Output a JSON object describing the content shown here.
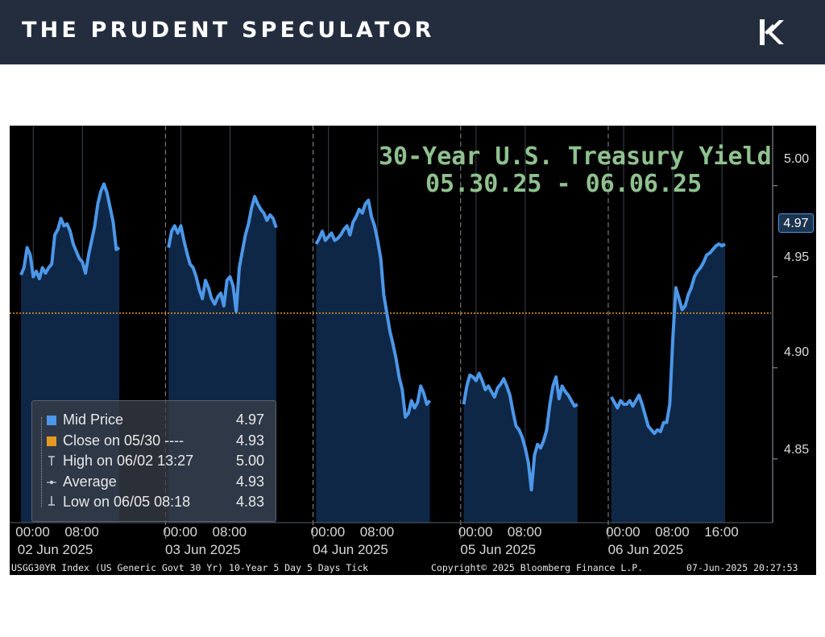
{
  "header": {
    "brand": "THE PRUDENT SPECULATOR",
    "logo_icon": "k-monogram-logo"
  },
  "colors": {
    "header_bg": "#232d3e",
    "chart_bg": "#000000",
    "series_line": "#4c97e8",
    "series_fill": "#0f2746",
    "close_line": "#e39a21",
    "title_green": "#8fc18f"
  },
  "chart_data": {
    "type": "area",
    "title": "30-Year U.S. Treasury Yield",
    "subtitle": "05.30.25 - 06.06.25",
    "ylim": [
      4.815,
      5.033
    ],
    "y_ticks": [
      "5.00",
      "4.95",
      "4.90",
      "4.85"
    ],
    "last_value_label": "4.97",
    "close_reference": 4.93,
    "x_tick_labels": [
      "00:00",
      "08:00",
      "00:00",
      "08:00",
      "00:00",
      "08:00",
      "00:00",
      "08:00",
      "00:00",
      "08:00",
      "16:00"
    ],
    "x_day_labels": [
      "02 Jun 2025",
      "03 Jun 2025",
      "04 Jun 2025",
      "05 Jun 2025",
      "06 Jun 2025"
    ],
    "x_tick_hours": [
      2,
      10,
      26,
      34,
      50,
      58,
      74,
      82,
      98,
      106,
      114
    ],
    "hours_range": [
      0,
      120
    ],
    "segments": [
      {
        "day": "02 Jun 2025",
        "points": [
          [
            0,
            4.951
          ],
          [
            0.5,
            4.955
          ],
          [
            1,
            4.966
          ],
          [
            1.5,
            4.962
          ],
          [
            2,
            4.95
          ],
          [
            2.5,
            4.953
          ],
          [
            3,
            4.949
          ],
          [
            3.5,
            4.955
          ],
          [
            4,
            4.952
          ],
          [
            4.5,
            4.955
          ],
          [
            5,
            4.957
          ],
          [
            5.5,
            4.973
          ],
          [
            6,
            4.976
          ],
          [
            6.5,
            4.982
          ],
          [
            7,
            4.978
          ],
          [
            7.5,
            4.979
          ],
          [
            8,
            4.975
          ],
          [
            8.5,
            4.968
          ],
          [
            9,
            4.964
          ],
          [
            9.5,
            4.96
          ],
          [
            10,
            4.958
          ],
          [
            10.5,
            4.952
          ],
          [
            11,
            4.962
          ],
          [
            11.5,
            4.97
          ],
          [
            12,
            4.978
          ],
          [
            12.5,
            4.99
          ],
          [
            13,
            4.997
          ],
          [
            13.5,
            5.001
          ],
          [
            14,
            4.996
          ],
          [
            14.5,
            4.988
          ],
          [
            15,
            4.98
          ],
          [
            15.5,
            4.965
          ],
          [
            16,
            4.966
          ]
        ]
      },
      {
        "day": "03 Jun 2025",
        "points": [
          [
            24,
            4.966
          ],
          [
            24.5,
            4.975
          ],
          [
            25,
            4.978
          ],
          [
            25.5,
            4.974
          ],
          [
            26,
            4.978
          ],
          [
            26.5,
            4.97
          ],
          [
            27,
            4.963
          ],
          [
            27.5,
            4.957
          ],
          [
            28,
            4.955
          ],
          [
            28.5,
            4.95
          ],
          [
            29,
            4.943
          ],
          [
            29.5,
            4.938
          ],
          [
            30,
            4.948
          ],
          [
            30.5,
            4.944
          ],
          [
            31,
            4.938
          ],
          [
            31.5,
            4.935
          ],
          [
            32,
            4.939
          ],
          [
            32.5,
            4.941
          ],
          [
            33,
            4.934
          ],
          [
            33.5,
            4.948
          ],
          [
            34,
            4.95
          ],
          [
            34.5,
            4.945
          ],
          [
            35,
            4.931
          ],
          [
            35.5,
            4.955
          ],
          [
            36,
            4.964
          ],
          [
            36.5,
            4.973
          ],
          [
            37,
            4.979
          ],
          [
            37.5,
            4.988
          ],
          [
            38,
            4.994
          ],
          [
            38.5,
            4.99
          ],
          [
            39,
            4.987
          ],
          [
            39.5,
            4.985
          ],
          [
            40,
            4.981
          ],
          [
            40.5,
            4.984
          ],
          [
            41,
            4.982
          ],
          [
            41.5,
            4.977
          ]
        ]
      },
      {
        "day": "04 Jun 2025",
        "points": [
          [
            48,
            4.968
          ],
          [
            48.5,
            4.971
          ],
          [
            49,
            4.975
          ],
          [
            49.5,
            4.97
          ],
          [
            50,
            4.972
          ],
          [
            50.5,
            4.974
          ],
          [
            51,
            4.97
          ],
          [
            51.5,
            4.971
          ],
          [
            52,
            4.973
          ],
          [
            52.5,
            4.976
          ],
          [
            53,
            4.978
          ],
          [
            53.5,
            4.973
          ],
          [
            54,
            4.98
          ],
          [
            54.5,
            4.983
          ],
          [
            55,
            4.987
          ],
          [
            55.5,
            4.985
          ],
          [
            56,
            4.99
          ],
          [
            56.5,
            4.992
          ],
          [
            57,
            4.983
          ],
          [
            57.5,
            4.978
          ],
          [
            58,
            4.97
          ],
          [
            58.5,
            4.96
          ],
          [
            59,
            4.94
          ],
          [
            59.5,
            4.93
          ],
          [
            60,
            4.92
          ],
          [
            60.5,
            4.913
          ],
          [
            61,
            4.905
          ],
          [
            61.5,
            4.895
          ],
          [
            62,
            4.888
          ],
          [
            62.5,
            4.873
          ],
          [
            63,
            4.875
          ],
          [
            63.5,
            4.882
          ],
          [
            64,
            4.878
          ],
          [
            64.5,
            4.881
          ],
          [
            65,
            4.89
          ],
          [
            65.5,
            4.886
          ],
          [
            66,
            4.88
          ],
          [
            66.5,
            4.882
          ]
        ]
      },
      {
        "day": "05 Jun 2025",
        "points": [
          [
            72,
            4.88
          ],
          [
            72.5,
            4.89
          ],
          [
            73,
            4.896
          ],
          [
            73.5,
            4.895
          ],
          [
            74,
            4.893
          ],
          [
            74.5,
            4.897
          ],
          [
            75,
            4.893
          ],
          [
            75.5,
            4.888
          ],
          [
            76,
            4.89
          ],
          [
            76.5,
            4.887
          ],
          [
            77,
            4.884
          ],
          [
            77.5,
            4.889
          ],
          [
            78,
            4.891
          ],
          [
            78.5,
            4.894
          ],
          [
            79,
            4.89
          ],
          [
            79.5,
            4.885
          ],
          [
            80,
            4.876
          ],
          [
            80.5,
            4.868
          ],
          [
            81,
            4.866
          ],
          [
            81.5,
            4.862
          ],
          [
            82,
            4.856
          ],
          [
            82.5,
            4.848
          ],
          [
            83,
            4.833
          ],
          [
            83.5,
            4.852
          ],
          [
            84,
            4.858
          ],
          [
            84.5,
            4.856
          ],
          [
            85,
            4.86
          ],
          [
            85.5,
            4.866
          ],
          [
            86,
            4.88
          ],
          [
            86.5,
            4.89
          ],
          [
            87,
            4.895
          ],
          [
            87.5,
            4.883
          ],
          [
            88,
            4.89
          ],
          [
            88.5,
            4.887
          ],
          [
            89,
            4.885
          ],
          [
            89.5,
            4.882
          ],
          [
            90,
            4.879
          ],
          [
            90.5,
            4.88
          ]
        ]
      },
      {
        "day": "06 Jun 2025",
        "points": [
          [
            96,
            4.884
          ],
          [
            96.5,
            4.881
          ],
          [
            97,
            4.878
          ],
          [
            97.5,
            4.882
          ],
          [
            98,
            4.88
          ],
          [
            98.5,
            4.88
          ],
          [
            99,
            4.882
          ],
          [
            99.5,
            4.879
          ],
          [
            100,
            4.882
          ],
          [
            100.5,
            4.885
          ],
          [
            101,
            4.88
          ],
          [
            101.5,
            4.874
          ],
          [
            102,
            4.868
          ],
          [
            102.5,
            4.866
          ],
          [
            103,
            4.864
          ],
          [
            103.5,
            4.866
          ],
          [
            104,
            4.865
          ],
          [
            104.5,
            4.87
          ],
          [
            105,
            4.87
          ],
          [
            105.5,
            4.88
          ],
          [
            106,
            4.916
          ],
          [
            106.5,
            4.944
          ],
          [
            107,
            4.938
          ],
          [
            107.5,
            4.932
          ],
          [
            108,
            4.934
          ],
          [
            108.5,
            4.94
          ],
          [
            109,
            4.944
          ],
          [
            109.5,
            4.95
          ],
          [
            110,
            4.953
          ],
          [
            110.5,
            4.955
          ],
          [
            111,
            4.958
          ],
          [
            111.5,
            4.962
          ],
          [
            112,
            4.963
          ],
          [
            112.5,
            4.965
          ],
          [
            113,
            4.967
          ],
          [
            113.5,
            4.968
          ],
          [
            114,
            4.967
          ],
          [
            114.5,
            4.968
          ]
        ]
      }
    ],
    "legend": [
      {
        "name": "Mid Price",
        "value": "4.97",
        "symbol": "square-blue"
      },
      {
        "name": "Close on 05/30 ----",
        "value": "4.93",
        "symbol": "square-orange"
      },
      {
        "name": "High on 06/02 13:27",
        "value": "5.00",
        "symbol": "high-marker-icon"
      },
      {
        "name": "Average",
        "value": "4.93",
        "symbol": "average-marker-icon"
      },
      {
        "name": "Low on 06/05 08:18",
        "value": "4.83",
        "symbol": "low-marker-icon"
      }
    ]
  },
  "footer": {
    "left": "USGG30YR Index (US Generic Govt 30 Yr) 10-Year 5 Day 5 Days  Tick",
    "center": "Copyright© 2025 Bloomberg Finance L.P.",
    "right": "07-Jun-2025 20:27:53"
  }
}
